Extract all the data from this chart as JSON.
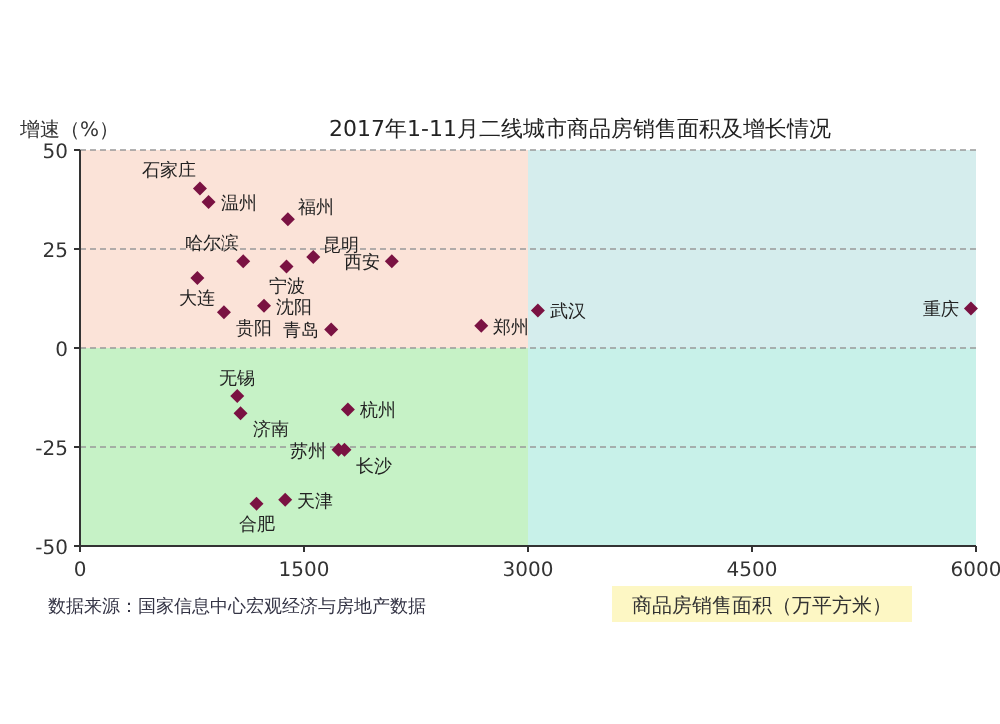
{
  "chart_data": {
    "type": "scatter",
    "title": "2017年1-11月二线城市商品房销售面积及增长情况",
    "ylabel": "增速（%）",
    "xlabel": "商品房销售面积（万平方米）",
    "xlim": [
      0,
      6000
    ],
    "ylim": [
      -50,
      50
    ],
    "xticks": [
      0,
      1500,
      3000,
      4500,
      6000
    ],
    "yticks": [
      -50,
      -25,
      0,
      25,
      50
    ],
    "grid": "y",
    "marker": "diamond",
    "series": [
      {
        "color": "#7a1242",
        "x": [
          803,
          861,
          1392,
          1093,
          1562,
          1383,
          2088,
          786,
          964,
          1232,
          1682,
          2687,
          3066,
          5966,
          1794,
          1075,
          1731,
          1771,
          1374,
          1182,
          1053
        ],
        "values": [
          40.3,
          36.9,
          32.5,
          21.9,
          23,
          20.6,
          21.9,
          17.7,
          9,
          10.7,
          4.7,
          5.6,
          9.5,
          10,
          -15.5,
          -16.5,
          -25.7,
          -25.7,
          -38.3,
          -39.3,
          -12.1
        ]
      }
    ],
    "bands": [
      {
        "axis": "y",
        "from": 0,
        "to": 50,
        "color": "#fbe3d8"
      },
      {
        "axis": "y",
        "from": -50,
        "to": 0,
        "color": "#c6f2c6"
      },
      {
        "axis": "x",
        "from": 3000,
        "to": 6000,
        "color": "#c8f0f4"
      }
    ],
    "annotations": [
      {
        "text": "石家庄",
        "x": 803,
        "y": 40.3
      },
      {
        "text": "温州",
        "x": 861,
        "y": 36.9
      },
      {
        "text": "福州",
        "x": 1392,
        "y": 32.5
      },
      {
        "text": "哈尔滨",
        "x": 1093,
        "y": 21.9
      },
      {
        "text": "昆明",
        "x": 1562,
        "y": 23
      },
      {
        "text": "宁波",
        "x": 1383,
        "y": 20.6
      },
      {
        "text": "西安",
        "x": 2088,
        "y": 21.9
      },
      {
        "text": "大连",
        "x": 786,
        "y": 17.7
      },
      {
        "text": "贵阳",
        "x": 964,
        "y": 9
      },
      {
        "text": "沈阳",
        "x": 1232,
        "y": 10.7
      },
      {
        "text": "青岛",
        "x": 1682,
        "y": 4.7
      },
      {
        "text": "郑州",
        "x": 2687,
        "y": 5.6
      },
      {
        "text": "武汉",
        "x": 3066,
        "y": 9.5
      },
      {
        "text": "重庆",
        "x": 5966,
        "y": 10
      },
      {
        "text": "杭州",
        "x": 1794,
        "y": -15.5
      },
      {
        "text": "济南",
        "x": 1075,
        "y": -16.5
      },
      {
        "text": "苏州",
        "x": 1731,
        "y": -25.7
      },
      {
        "text": "长沙",
        "x": 1771,
        "y": -25.7
      },
      {
        "text": "天津",
        "x": 1374,
        "y": -38.3
      },
      {
        "text": "合肥",
        "x": 1182,
        "y": -39.3
      },
      {
        "text": "无锡",
        "x": 1053,
        "y": -12.1
      },
      "数据来源：国家信息中心宏观经济与房地产数据"
    ]
  }
}
